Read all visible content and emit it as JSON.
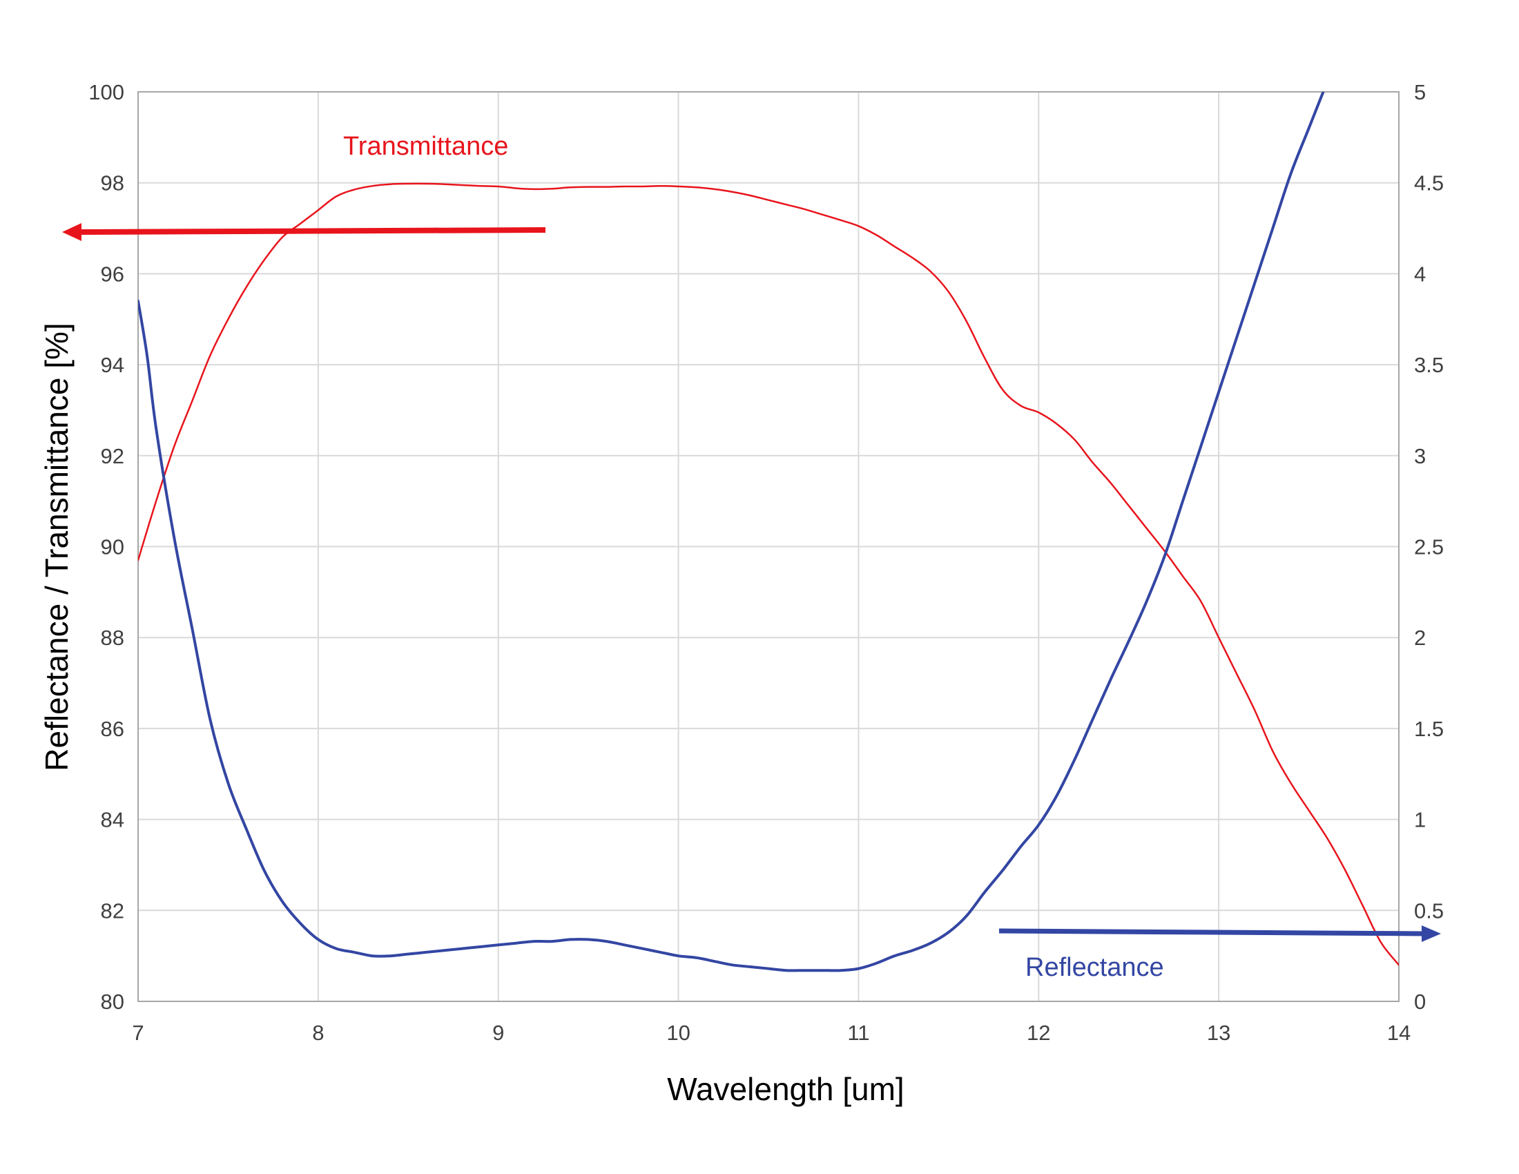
{
  "chart_data": {
    "type": "line",
    "title": "",
    "xlabel": "Wavelength [um]",
    "ylabel": "Reflectance / Transmittance [%]",
    "xlim": [
      7,
      14
    ],
    "ylim_left": [
      80,
      100
    ],
    "ylim_right": [
      0,
      5
    ],
    "x_ticks": [
      "7",
      "8",
      "9",
      "10",
      "11",
      "12",
      "13",
      "14"
    ],
    "y_left_ticks": [
      "80",
      "82",
      "84",
      "86",
      "88",
      "90",
      "92",
      "94",
      "96",
      "98",
      "100"
    ],
    "y_right_ticks": [
      "0",
      "0.5",
      "1",
      "1.5",
      "2",
      "2.5",
      "3",
      "3.5",
      "4",
      "4.5",
      "5"
    ],
    "grid": true,
    "colors": {
      "transmittance": "#e8141c",
      "reflectance": "#3346a3",
      "grid": "#d9d9d9",
      "frame": "#a6a6a6"
    },
    "annotations": {
      "transmittance_label": "Transmittance",
      "reflectance_label": "Reflectance",
      "transmittance_arrow_axis": "left",
      "reflectance_arrow_axis": "right"
    },
    "series": [
      {
        "name": "Transmittance",
        "axis": "left",
        "x": [
          7.0,
          7.1,
          7.2,
          7.3,
          7.4,
          7.5,
          7.6,
          7.7,
          7.8,
          7.9,
          8.0,
          8.1,
          8.2,
          8.3,
          8.4,
          8.5,
          8.6,
          8.7,
          8.8,
          8.9,
          9.0,
          9.1,
          9.2,
          9.3,
          9.4,
          9.5,
          9.6,
          9.7,
          9.8,
          9.9,
          10.0,
          10.1,
          10.2,
          10.3,
          10.4,
          10.5,
          10.6,
          10.7,
          10.8,
          10.9,
          11.0,
          11.1,
          11.2,
          11.3,
          11.4,
          11.5,
          11.6,
          11.7,
          11.8,
          11.9,
          12.0,
          12.1,
          12.2,
          12.3,
          12.4,
          12.5,
          12.6,
          12.7,
          12.8,
          12.9,
          13.0,
          13.1,
          13.2,
          13.3,
          13.4,
          13.5,
          13.6,
          13.7,
          13.8,
          13.9,
          14.0
        ],
        "values": [
          89.7,
          91.0,
          92.2,
          93.2,
          94.2,
          95.0,
          95.7,
          96.3,
          96.8,
          97.1,
          97.4,
          97.7,
          97.85,
          97.93,
          97.97,
          97.98,
          97.98,
          97.97,
          97.95,
          97.93,
          97.92,
          97.88,
          97.86,
          97.87,
          97.9,
          97.91,
          97.91,
          97.92,
          97.92,
          97.93,
          97.92,
          97.9,
          97.86,
          97.8,
          97.72,
          97.62,
          97.52,
          97.42,
          97.3,
          97.18,
          97.05,
          96.85,
          96.6,
          96.35,
          96.05,
          95.6,
          94.95,
          94.15,
          93.45,
          93.1,
          92.95,
          92.7,
          92.35,
          91.85,
          91.4,
          90.9,
          90.4,
          89.9,
          89.35,
          88.8,
          88.0,
          87.2,
          86.4,
          85.5,
          84.8,
          84.2,
          83.6,
          82.9,
          82.1,
          81.3,
          80.8
        ]
      },
      {
        "name": "Reflectance",
        "axis": "right",
        "x": [
          7.0,
          7.05,
          7.1,
          7.2,
          7.3,
          7.4,
          7.5,
          7.6,
          7.7,
          7.8,
          7.9,
          8.0,
          8.1,
          8.2,
          8.3,
          8.4,
          8.5,
          8.6,
          8.7,
          8.8,
          8.9,
          9.0,
          9.1,
          9.2,
          9.3,
          9.4,
          9.5,
          9.6,
          9.7,
          9.8,
          9.9,
          10.0,
          10.1,
          10.2,
          10.3,
          10.4,
          10.5,
          10.6,
          10.7,
          10.8,
          10.9,
          11.0,
          11.1,
          11.2,
          11.3,
          11.4,
          11.5,
          11.6,
          11.7,
          11.8,
          11.9,
          12.0,
          12.1,
          12.2,
          12.3,
          12.4,
          12.5,
          12.6,
          12.7,
          12.8,
          12.9,
          13.0,
          13.1,
          13.2,
          13.3,
          13.4,
          13.5,
          13.6
        ],
        "values": [
          3.85,
          3.55,
          3.15,
          2.55,
          2.05,
          1.55,
          1.2,
          0.95,
          0.72,
          0.55,
          0.43,
          0.34,
          0.29,
          0.27,
          0.25,
          0.25,
          0.26,
          0.27,
          0.28,
          0.29,
          0.3,
          0.31,
          0.32,
          0.33,
          0.33,
          0.34,
          0.34,
          0.33,
          0.31,
          0.29,
          0.27,
          0.25,
          0.24,
          0.22,
          0.2,
          0.19,
          0.18,
          0.17,
          0.17,
          0.17,
          0.17,
          0.18,
          0.21,
          0.25,
          0.28,
          0.32,
          0.38,
          0.47,
          0.6,
          0.72,
          0.85,
          0.97,
          1.13,
          1.33,
          1.55,
          1.77,
          1.98,
          2.2,
          2.45,
          2.75,
          3.05,
          3.35,
          3.65,
          3.95,
          4.25,
          4.55,
          4.8,
          5.05
        ]
      }
    ]
  }
}
